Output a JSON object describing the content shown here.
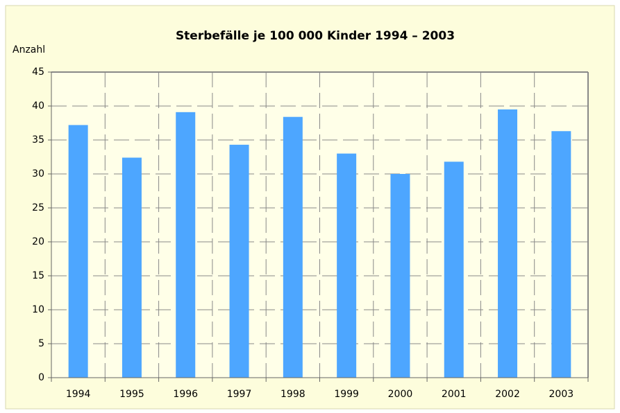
{
  "chart_data": {
    "type": "bar",
    "title": "Sterbefälle je 100 000 Kinder 1994 – 2003",
    "y_axis_label": "Anzahl",
    "categories": [
      "1994",
      "1995",
      "1996",
      "1997",
      "1998",
      "1999",
      "2000",
      "2001",
      "2002",
      "2003"
    ],
    "values": [
      37.2,
      32.4,
      39.1,
      34.3,
      38.4,
      33.0,
      30.0,
      31.8,
      39.5,
      36.3
    ],
    "color": "#4da6ff",
    "ylim": [
      0,
      45
    ],
    "yticks": [
      0,
      5,
      10,
      15,
      20,
      25,
      30,
      35,
      40,
      45
    ],
    "grid": true
  }
}
